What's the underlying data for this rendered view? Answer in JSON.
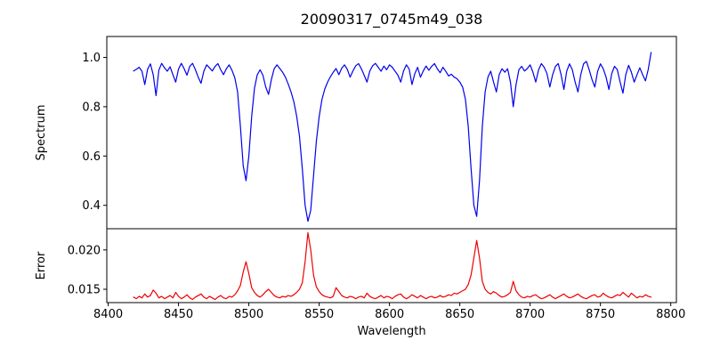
{
  "figure": {
    "background": "#ffffff",
    "frame_color": "#000000",
    "text_color": "#000000"
  },
  "chart_data": {
    "type": "line",
    "title": "20090317_0745m49_038",
    "xlabel": "Wavelength",
    "xlim": [
      8399,
      8804
    ],
    "xticks": [
      8400,
      8450,
      8500,
      8550,
      8600,
      8650,
      8700,
      8750,
      8800
    ],
    "grid": false,
    "legend": null,
    "panels": [
      {
        "name": "spectrum",
        "ylabel": "Spectrum",
        "ylim": [
          0.305,
          1.085
        ],
        "yticks": [
          0.4,
          0.6,
          0.8,
          1.0
        ],
        "ytick_labels": [
          "0.4",
          "0.6",
          "0.8",
          "1.0"
        ],
        "series": {
          "name": "spectrum-flux",
          "color": "#0000ee",
          "x_start": 8418,
          "x_step": 2,
          "values": [
            0.945,
            0.952,
            0.96,
            0.944,
            0.89,
            0.952,
            0.974,
            0.93,
            0.845,
            0.948,
            0.976,
            0.958,
            0.944,
            0.962,
            0.93,
            0.9,
            0.953,
            0.976,
            0.954,
            0.928,
            0.964,
            0.976,
            0.95,
            0.92,
            0.895,
            0.944,
            0.97,
            0.958,
            0.945,
            0.964,
            0.975,
            0.95,
            0.93,
            0.954,
            0.97,
            0.948,
            0.918,
            0.86,
            0.72,
            0.56,
            0.5,
            0.6,
            0.76,
            0.875,
            0.93,
            0.95,
            0.928,
            0.88,
            0.85,
            0.91,
            0.954,
            0.97,
            0.955,
            0.94,
            0.92,
            0.892,
            0.86,
            0.82,
            0.762,
            0.68,
            0.55,
            0.4,
            0.335,
            0.38,
            0.52,
            0.66,
            0.76,
            0.83,
            0.872,
            0.9,
            0.922,
            0.94,
            0.955,
            0.93,
            0.956,
            0.97,
            0.952,
            0.92,
            0.945,
            0.966,
            0.975,
            0.954,
            0.928,
            0.9,
            0.945,
            0.966,
            0.976,
            0.96,
            0.944,
            0.965,
            0.95,
            0.97,
            0.96,
            0.944,
            0.928,
            0.9,
            0.945,
            0.97,
            0.953,
            0.89,
            0.934,
            0.96,
            0.92,
            0.945,
            0.965,
            0.948,
            0.964,
            0.975,
            0.954,
            0.938,
            0.96,
            0.944,
            0.925,
            0.932,
            0.92,
            0.914,
            0.9,
            0.88,
            0.83,
            0.72,
            0.55,
            0.4,
            0.355,
            0.5,
            0.72,
            0.86,
            0.92,
            0.944,
            0.9,
            0.86,
            0.93,
            0.954,
            0.94,
            0.954,
            0.9,
            0.8,
            0.89,
            0.95,
            0.964,
            0.945,
            0.955,
            0.97,
            0.94,
            0.9,
            0.95,
            0.975,
            0.96,
            0.934,
            0.88,
            0.93,
            0.964,
            0.975,
            0.93,
            0.87,
            0.944,
            0.974,
            0.95,
            0.9,
            0.86,
            0.93,
            0.974,
            0.984,
            0.95,
            0.91,
            0.88,
            0.944,
            0.974,
            0.954,
            0.92,
            0.87,
            0.934,
            0.964,
            0.95,
            0.9,
            0.855,
            0.93,
            0.968,
            0.94,
            0.9,
            0.93,
            0.958,
            0.93,
            0.905,
            0.952,
            1.02
          ]
        }
      },
      {
        "name": "error",
        "ylabel": "Error",
        "ylim": [
          0.0133,
          0.0227
        ],
        "yticks": [
          0.015,
          0.02
        ],
        "ytick_labels": [
          "0.015",
          "0.020"
        ],
        "series": {
          "name": "error-values",
          "color": "#ee0000",
          "x_start": 8418,
          "x_step": 2,
          "values": [
            0.014,
            0.0138,
            0.0141,
            0.0139,
            0.0144,
            0.014,
            0.0142,
            0.0149,
            0.0145,
            0.0139,
            0.0141,
            0.0138,
            0.014,
            0.0142,
            0.0139,
            0.0146,
            0.0141,
            0.0138,
            0.014,
            0.0143,
            0.0139,
            0.0137,
            0.014,
            0.0142,
            0.0144,
            0.014,
            0.0138,
            0.0141,
            0.0139,
            0.0137,
            0.014,
            0.0142,
            0.0139,
            0.0138,
            0.0141,
            0.014,
            0.0143,
            0.0148,
            0.0155,
            0.0172,
            0.0185,
            0.017,
            0.0152,
            0.0146,
            0.0142,
            0.014,
            0.0143,
            0.0147,
            0.015,
            0.0146,
            0.0142,
            0.014,
            0.0139,
            0.0141,
            0.014,
            0.0142,
            0.0141,
            0.0143,
            0.0146,
            0.015,
            0.0158,
            0.0185,
            0.0222,
            0.02,
            0.0168,
            0.0153,
            0.0147,
            0.0143,
            0.0141,
            0.014,
            0.0139,
            0.0141,
            0.0152,
            0.0147,
            0.0142,
            0.014,
            0.0139,
            0.0141,
            0.014,
            0.0138,
            0.014,
            0.0141,
            0.0139,
            0.0145,
            0.0141,
            0.0139,
            0.0138,
            0.014,
            0.0142,
            0.0139,
            0.0141,
            0.014,
            0.0138,
            0.0141,
            0.0143,
            0.0144,
            0.014,
            0.0138,
            0.014,
            0.0143,
            0.0141,
            0.0139,
            0.0142,
            0.014,
            0.0138,
            0.014,
            0.0141,
            0.0139,
            0.014,
            0.0142,
            0.014,
            0.0141,
            0.0143,
            0.0142,
            0.0145,
            0.0144,
            0.0146,
            0.0148,
            0.015,
            0.0156,
            0.0168,
            0.019,
            0.0212,
            0.019,
            0.016,
            0.015,
            0.0146,
            0.0144,
            0.0147,
            0.0145,
            0.0142,
            0.014,
            0.0141,
            0.0143,
            0.0146,
            0.016,
            0.0148,
            0.0143,
            0.014,
            0.0139,
            0.0141,
            0.014,
            0.0142,
            0.0143,
            0.014,
            0.0138,
            0.0139,
            0.0141,
            0.0143,
            0.014,
            0.0138,
            0.014,
            0.0142,
            0.0144,
            0.0141,
            0.0139,
            0.014,
            0.0142,
            0.0144,
            0.0141,
            0.0139,
            0.0138,
            0.014,
            0.0142,
            0.0143,
            0.014,
            0.0141,
            0.0145,
            0.0142,
            0.014,
            0.0139,
            0.0141,
            0.0143,
            0.0142,
            0.0146,
            0.0143,
            0.014,
            0.0145,
            0.0142,
            0.0139,
            0.0141,
            0.014,
            0.0143,
            0.0141,
            0.014
          ]
        }
      }
    ],
    "visible_features": {
      "absorption_line_minima": [
        {
          "wavelength": 8498,
          "flux": 0.5
        },
        {
          "wavelength": 8542,
          "flux": 0.335
        },
        {
          "wavelength": 8662,
          "flux": 0.355
        }
      ],
      "error_peak_maxima": [
        {
          "wavelength": 8498,
          "error": 0.0185
        },
        {
          "wavelength": 8542,
          "error": 0.0222
        },
        {
          "wavelength": 8662,
          "error": 0.0212
        },
        {
          "wavelength": 8688,
          "error": 0.016
        }
      ]
    }
  }
}
